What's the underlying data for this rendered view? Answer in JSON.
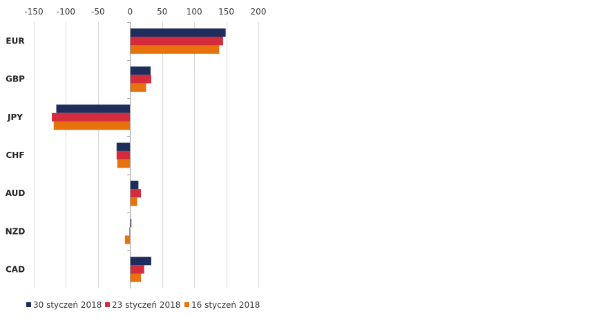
{
  "chart_data": {
    "type": "bar",
    "orientation": "horizontal",
    "categories": [
      "EUR",
      "GBP",
      "JPY",
      "CHF",
      "AUD",
      "NZD",
      "CAD"
    ],
    "series": [
      {
        "name": "30 styczeń 2018",
        "color": "#1f2d5c",
        "values": [
          149,
          32,
          -115,
          -21,
          13,
          2,
          33
        ]
      },
      {
        "name": "23 styczeń 2018",
        "color": "#d42c3c",
        "values": [
          145,
          33,
          -122,
          -21,
          17,
          -1,
          22
        ]
      },
      {
        "name": "16 styczeń 2018",
        "color": "#e8720c",
        "values": [
          139,
          25,
          -119,
          -20,
          11,
          -8,
          17
        ]
      }
    ],
    "xlim": [
      -150,
      200
    ],
    "xticks": [
      -150,
      -100,
      -50,
      0,
      50,
      100,
      150,
      200
    ],
    "xtick_labels": [
      "-150",
      "-100",
      "-50",
      "0",
      "50",
      "100",
      "150",
      "200"
    ],
    "x_axis_position": "top",
    "grid": "vertical",
    "legend_position": "bottom",
    "title": "",
    "xlabel": "",
    "ylabel": ""
  }
}
